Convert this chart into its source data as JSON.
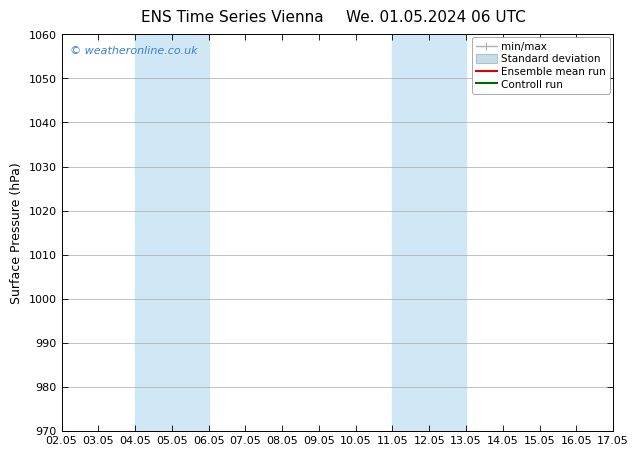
{
  "title_left": "ENS Time Series Vienna",
  "title_right": "We. 01.05.2024 06 UTC",
  "ylabel": "Surface Pressure (hPa)",
  "xlabel": "",
  "ylim": [
    970,
    1060
  ],
  "yticks": [
    970,
    980,
    990,
    1000,
    1010,
    1020,
    1030,
    1040,
    1050,
    1060
  ],
  "xtick_labels": [
    "02.05",
    "03.05",
    "04.05",
    "05.05",
    "06.05",
    "07.05",
    "08.05",
    "09.05",
    "10.05",
    "11.05",
    "12.05",
    "13.05",
    "14.05",
    "15.05",
    "16.05",
    "17.05"
  ],
  "xtick_positions": [
    0,
    1,
    2,
    3,
    4,
    5,
    6,
    7,
    8,
    9,
    10,
    11,
    12,
    13,
    14,
    15
  ],
  "shaded_regions": [
    {
      "xstart": 2,
      "xend": 4,
      "color": "#d0e8f5"
    },
    {
      "xstart": 9,
      "xend": 11,
      "color": "#d0e8f5"
    }
  ],
  "watermark_text": "© weatheronline.co.uk",
  "watermark_color": "#3a7fd5",
  "background_color": "#ffffff",
  "plot_bg_color": "#ffffff",
  "legend_items": [
    {
      "label": "min/max",
      "color": "#b0b0b0"
    },
    {
      "label": "Standard deviation",
      "color": "#c8dce8"
    },
    {
      "label": "Ensemble mean run",
      "color": "#dd0000"
    },
    {
      "label": "Controll run",
      "color": "#006600"
    }
  ],
  "border_color": "#000000",
  "tick_color": "#000000",
  "grid_color": "#aaaaaa",
  "title_fontsize": 11,
  "label_fontsize": 9,
  "tick_fontsize": 8,
  "legend_fontsize": 7.5
}
